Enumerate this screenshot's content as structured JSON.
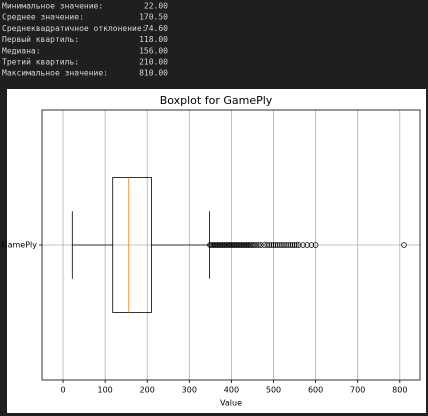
{
  "stats": {
    "rows": [
      {
        "label": "Минимальное значение:",
        "value": "22.00"
      },
      {
        "label": "Среднее значение:",
        "value": "170.50"
      },
      {
        "label": "Среднеквадратичное отклонение:",
        "value": "74.60"
      },
      {
        "label": "Первый квартиль:",
        "value": "118.00"
      },
      {
        "label": "Медиана:",
        "value": "156.00"
      },
      {
        "label": "Третий квартиль:",
        "value": "210.00"
      },
      {
        "label": "Максимальное значение:",
        "value": "810.00"
      }
    ]
  },
  "chart_data": {
    "type": "boxplot",
    "title": "Boxplot for GamePly",
    "xlabel": "Value",
    "categories": [
      "GamePly"
    ],
    "boxes": [
      {
        "whislo": 22,
        "q1": 118,
        "med": 156,
        "q3": 210,
        "whishi": 348,
        "fliers": [
          349,
          352,
          355,
          358,
          361,
          364,
          367,
          370,
          373,
          376,
          379,
          382,
          385,
          388,
          391,
          394,
          397,
          400,
          403,
          406,
          409,
          412,
          415,
          418,
          421,
          424,
          427,
          430,
          433,
          436,
          439,
          442,
          445,
          448,
          452,
          456,
          460,
          465,
          470,
          478,
          485,
          490,
          495,
          500,
          505,
          510,
          515,
          520,
          525,
          530,
          535,
          540,
          545,
          550,
          555,
          560,
          570,
          580,
          590,
          600,
          810
        ]
      }
    ],
    "xlim": [
      -50,
      848
    ],
    "xticks": [
      0,
      100,
      200,
      300,
      400,
      500,
      600,
      700,
      800
    ],
    "grid": true,
    "box_color": "#000000",
    "median_color": "#ff7f0e"
  }
}
